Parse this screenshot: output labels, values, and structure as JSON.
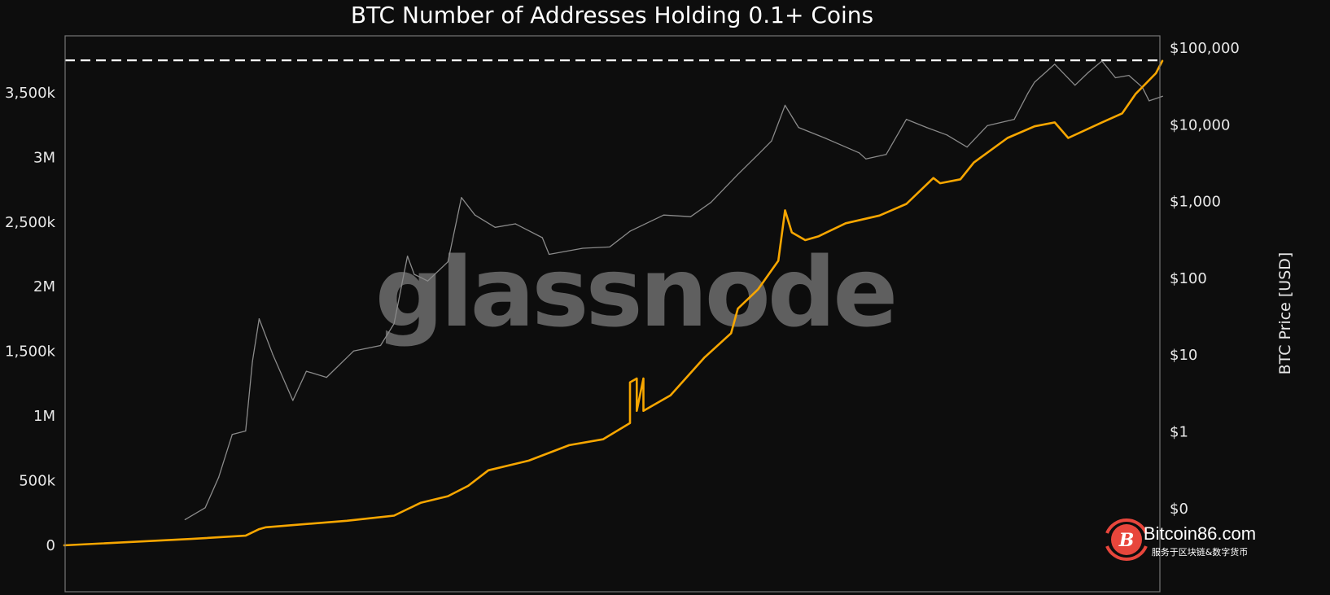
{
  "chart_data": {
    "type": "line",
    "title": "BTC Number of Addresses Holding 0.1+ Coins",
    "xlabel": "",
    "ylabel_left": "",
    "ylabel_right": "BTC Price [USD]",
    "xlim": [
      "2009-01",
      "2022-08"
    ],
    "ylim_left": [
      -50000,
      3900000
    ],
    "ylim_right_log": [
      0.03,
      190000
    ],
    "right_scale": "log",
    "grid": false,
    "legend": "none",
    "left_ticks": [
      {
        "value": 0,
        "label": "0"
      },
      {
        "value": 500000,
        "label": "500k"
      },
      {
        "value": 1000000,
        "label": "1M"
      },
      {
        "value": 1500000,
        "label": "1,500k"
      },
      {
        "value": 2000000,
        "label": "2M"
      },
      {
        "value": 2500000,
        "label": "2,500k"
      },
      {
        "value": 3000000,
        "label": "3M"
      },
      {
        "value": 3500000,
        "label": "3,500k"
      }
    ],
    "right_ticks": [
      {
        "value": 0.1,
        "label": "$0"
      },
      {
        "value": 1,
        "label": "$1"
      },
      {
        "value": 10,
        "label": "$10"
      },
      {
        "value": 100,
        "label": "$100"
      },
      {
        "value": 1000,
        "label": "$1,000"
      },
      {
        "value": 10000,
        "label": "$10,000"
      },
      {
        "value": 100000,
        "label": "$100,000"
      }
    ],
    "ath_line": {
      "axis": "left",
      "value": 3750000,
      "style": "dashed"
    },
    "series": [
      {
        "axis": "left",
        "color": "#f7a600",
        "x": [
          "2009-01",
          "2010-08",
          "2011-04",
          "2011-06",
          "2011-07",
          "2012-07",
          "2013-02",
          "2013-04",
          "2013-06",
          "2013-10",
          "2014-01",
          "2014-04",
          "2014-10",
          "2015-04",
          "2015-09",
          "2016-01",
          "2016-01",
          "2016-02",
          "2016-02",
          "2016-03",
          "2016-03",
          "2016-07",
          "2016-12",
          "2017-04",
          "2017-05",
          "2017-08",
          "2017-11",
          "2017-12",
          "2018-01",
          "2018-03",
          "2018-05",
          "2018-09",
          "2019-02",
          "2019-06",
          "2019-10",
          "2019-11",
          "2020-02",
          "2020-04",
          "2020-09",
          "2021-01",
          "2021-04",
          "2021-06",
          "2021-11",
          "2022-02",
          "2022-04",
          "2022-07",
          "2022-08"
        ],
        "values": [
          0,
          50000,
          75000,
          125000,
          140000,
          190000,
          230000,
          280000,
          330000,
          380000,
          460000,
          580000,
          655000,
          775000,
          820000,
          945000,
          1260000,
          1290000,
          1040000,
          1290000,
          1040000,
          1160000,
          1450000,
          1640000,
          1830000,
          1980000,
          2200000,
          2590000,
          2420000,
          2360000,
          2390000,
          2490000,
          2550000,
          2640000,
          2840000,
          2800000,
          2830000,
          2960000,
          3150000,
          3240000,
          3270000,
          3150000,
          3270000,
          3340000,
          3490000,
          3650000,
          3750000
        ]
      },
      {
        "axis": "right",
        "color": "#8a8a8a",
        "x": [
          "2010-07",
          "2010-10",
          "2010-12",
          "2011-02",
          "2011-04",
          "2011-05",
          "2011-06",
          "2011-08",
          "2011-11",
          "2012-01",
          "2012-04",
          "2012-08",
          "2012-12",
          "2013-02",
          "2013-04",
          "2013-05",
          "2013-07",
          "2013-10",
          "2013-12",
          "2014-02",
          "2014-05",
          "2014-08",
          "2014-12",
          "2015-01",
          "2015-06",
          "2015-10",
          "2016-01",
          "2016-06",
          "2016-10",
          "2017-01",
          "2017-05",
          "2017-08",
          "2017-10",
          "2017-12",
          "2018-02",
          "2018-06",
          "2018-11",
          "2018-12",
          "2019-03",
          "2019-06",
          "2019-09",
          "2019-12",
          "2020-03",
          "2020-06",
          "2020-10",
          "2020-12",
          "2021-01",
          "2021-04",
          "2021-07",
          "2021-09",
          "2021-11",
          "2022-01",
          "2022-03",
          "2022-05",
          "2022-06",
          "2022-08"
        ],
        "values": [
          0.07,
          0.1,
          0.25,
          0.9,
          1,
          8,
          29,
          10,
          2.5,
          6,
          5,
          11,
          13,
          25,
          190,
          110,
          90,
          160,
          1100,
          650,
          450,
          500,
          330,
          200,
          240,
          250,
          400,
          650,
          620,
          950,
          2200,
          4000,
          6000,
          17500,
          9000,
          6500,
          4200,
          3500,
          4000,
          11500,
          9000,
          7200,
          5000,
          9500,
          11500,
          25000,
          35000,
          60000,
          32000,
          47000,
          66000,
          40000,
          43000,
          30000,
          20000,
          23000
        ]
      }
    ]
  },
  "watermark": "glassnode",
  "source_logo": {
    "name": "Bitcoin86.com",
    "tagline": "服务于区块链&数字货币",
    "color": "#e8463c"
  }
}
